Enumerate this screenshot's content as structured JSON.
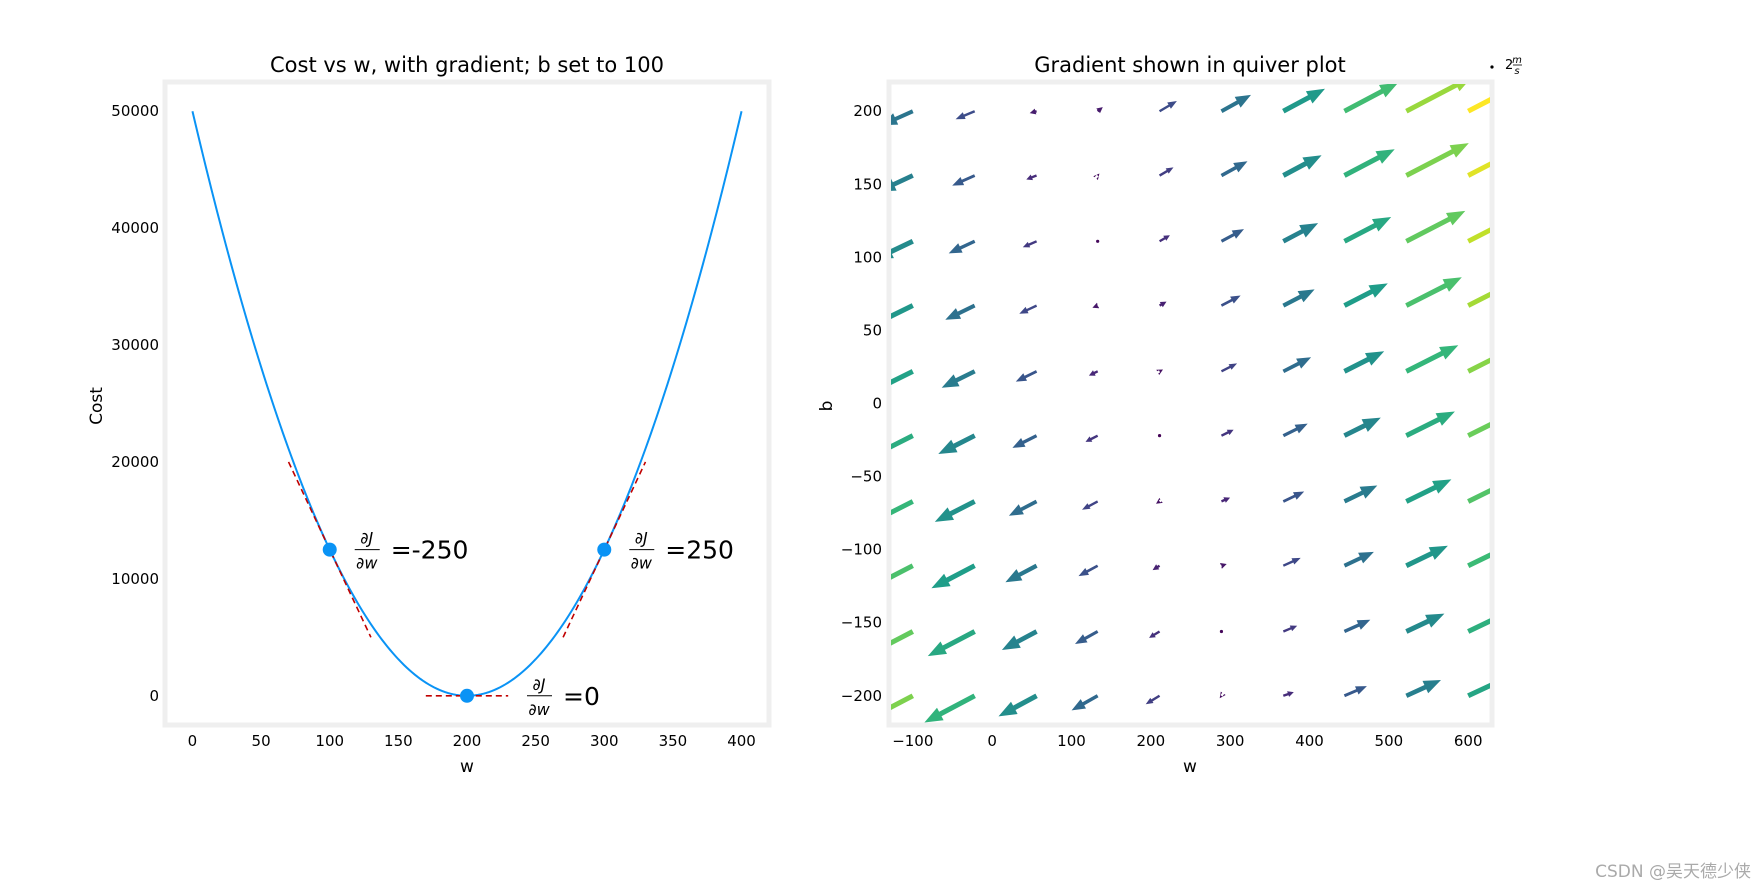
{
  "watermark": "CSDN @吴天德少侠",
  "chart_data": [
    {
      "type": "line",
      "title": "Cost vs w, with gradient; b set to 100",
      "xlabel": "w",
      "ylabel": "Cost",
      "xlim": [
        -20,
        420
      ],
      "ylim": [
        -2500,
        52500
      ],
      "xticks": [
        0,
        50,
        100,
        150,
        200,
        250,
        300,
        350,
        400
      ],
      "yticks": [
        0,
        10000,
        20000,
        30000,
        40000,
        50000
      ],
      "grid": false,
      "curve": {
        "formula": "cost = 1.25 * (w - 200)^2",
        "x_range": [
          0,
          400
        ]
      },
      "tangent_points": [
        {
          "w": 100,
          "cost": 12500,
          "derivative_label": "=-250"
        },
        {
          "w": 200,
          "cost": 0,
          "derivative_label": "=0"
        },
        {
          "w": 300,
          "cost": 12500,
          "derivative_label": "=250"
        }
      ],
      "derivative_symbol": {
        "numerator": "∂J",
        "denominator": "∂w"
      },
      "colors": {
        "curve": "#0a93f5",
        "points": "#0a93f5",
        "tangent": "#c00000",
        "frame": "#efefef"
      }
    },
    {
      "type": "quiver",
      "title": "Gradient shown in quiver plot",
      "xlabel": "w",
      "ylabel": "b",
      "xlim": [
        -130,
        630
      ],
      "ylim": [
        -220,
        220
      ],
      "xticks": [
        -100,
        0,
        100,
        200,
        300,
        400,
        500,
        600
      ],
      "yticks": [
        -200,
        -150,
        -100,
        -50,
        0,
        50,
        100,
        150,
        200
      ],
      "grid": false,
      "w_values": [
        -100,
        -22,
        56,
        133,
        211,
        289,
        367,
        444,
        522,
        600
      ],
      "b_values": [
        -200,
        -156,
        -111,
        -67,
        -22,
        22,
        67,
        111,
        156,
        200
      ],
      "gradient_formula": {
        "dj_dw": "2.5 * w - 500 + 1.25 * b",
        "dj_db": "1.25 * w - 250 + 0.75 * b"
      },
      "colormap": "viridis",
      "quiverkey_label": "2",
      "quiverkey_units": {
        "numerator": "m",
        "denominator": "s"
      },
      "colors": {
        "frame": "#efefef"
      }
    }
  ]
}
